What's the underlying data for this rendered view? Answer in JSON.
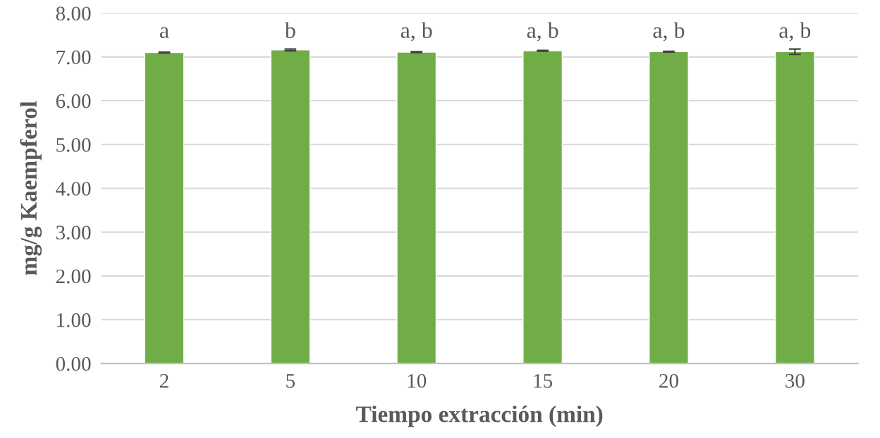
{
  "chart_data": {
    "type": "bar",
    "xlabel": "Tiempo extracción (min)",
    "ylabel": "mg/g Kaempferol",
    "categories": [
      "2",
      "5",
      "10",
      "15",
      "20",
      "30"
    ],
    "values": [
      7.1,
      7.16,
      7.11,
      7.14,
      7.12,
      7.12
    ],
    "errors": [
      0.01,
      0.02,
      0.01,
      0.01,
      0.01,
      0.06
    ],
    "color": "#70ad47",
    "ylim": [
      0,
      8
    ],
    "yticks": [
      {
        "value": 0,
        "label": "0.00"
      },
      {
        "value": 1,
        "label": "1.00"
      },
      {
        "value": 2,
        "label": "2.00"
      },
      {
        "value": 3,
        "label": "3.00"
      },
      {
        "value": 4,
        "label": "4.00"
      },
      {
        "value": 5,
        "label": "5.00"
      },
      {
        "value": 6,
        "label": "6.00"
      },
      {
        "value": 7,
        "label": "7.00"
      },
      {
        "value": 8,
        "label": "8.00"
      }
    ],
    "grid": "y",
    "annotations": [
      "a",
      "b",
      "a, b",
      "a, b",
      "a, b",
      "a, b"
    ]
  }
}
